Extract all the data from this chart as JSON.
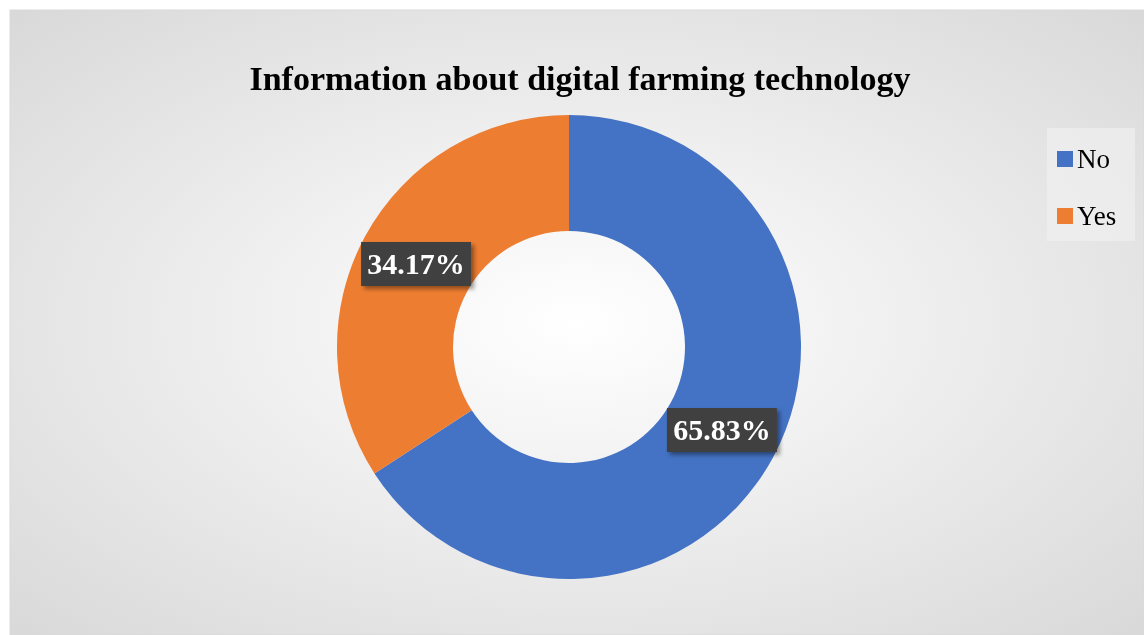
{
  "chart_data": {
    "type": "donut",
    "title": "Information about digital farming technology",
    "categories": [
      "No",
      "Yes"
    ],
    "values": [
      65.83,
      34.17
    ],
    "colors": [
      "#4472c4",
      "#ed7d31"
    ],
    "value_labels": [
      "65.83%",
      "34.17%"
    ],
    "legend": "right"
  }
}
